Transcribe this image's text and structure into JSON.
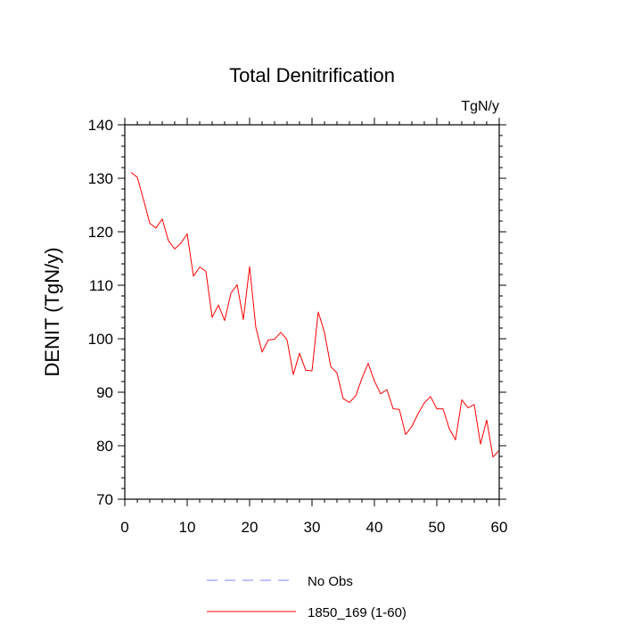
{
  "chart_data": {
    "type": "line",
    "title": "Total Denitrification",
    "units_label": "TgN/y",
    "ylabel": "DENIT  (TgN/y)",
    "xlabel": "",
    "xlim": [
      0,
      60
    ],
    "ylim": [
      70,
      140
    ],
    "xticks": [
      0,
      10,
      20,
      30,
      40,
      50,
      60
    ],
    "yticks": [
      70,
      80,
      90,
      100,
      110,
      120,
      130,
      140
    ],
    "legend": [
      {
        "label": "No Obs",
        "color": "#8080ff",
        "style": "dashed"
      },
      {
        "label": "1850_169 (1-60)",
        "color": "#ff0000",
        "style": "solid"
      }
    ],
    "series": [
      {
        "name": "1850_169 (1-60)",
        "color": "#ff0000",
        "x": [
          1,
          2,
          3,
          4,
          5,
          6,
          7,
          8,
          9,
          10,
          11,
          12,
          13,
          14,
          15,
          16,
          17,
          18,
          19,
          20,
          21,
          22,
          23,
          24,
          25,
          26,
          27,
          28,
          29,
          30,
          31,
          32,
          33,
          34,
          35,
          36,
          37,
          38,
          39,
          40,
          41,
          42,
          43,
          44,
          45,
          46,
          47,
          48,
          49,
          50,
          51,
          52,
          53,
          54,
          55,
          56,
          57,
          58,
          59,
          60
        ],
        "values": [
          131.1,
          130.2,
          126.0,
          121.6,
          120.7,
          122.4,
          118.3,
          116.8,
          117.9,
          119.6,
          111.7,
          113.4,
          112.6,
          104.0,
          106.3,
          103.4,
          108.5,
          110.1,
          103.6,
          113.5,
          102.1,
          97.5,
          99.8,
          99.9,
          101.2,
          99.8,
          93.3,
          97.3,
          94.1,
          94.0,
          105.0,
          101.2,
          94.8,
          93.6,
          88.8,
          88.1,
          89.3,
          92.6,
          95.4,
          92.1,
          89.7,
          90.5,
          86.9,
          86.8,
          82.1,
          83.6,
          86.0,
          88.0,
          89.2,
          86.9,
          86.9,
          83.2,
          81.1,
          88.6,
          87.1,
          87.7,
          80.3,
          84.8,
          77.9,
          79.1
        ]
      }
    ]
  }
}
